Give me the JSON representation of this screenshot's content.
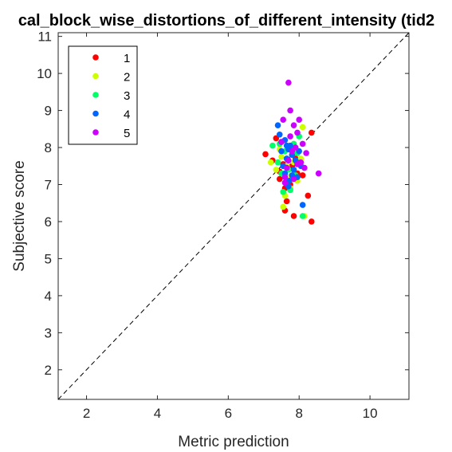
{
  "chart_data": {
    "type": "scatter",
    "title": "cal_block_wise_distortions_of_different_intensity (tid2",
    "xlabel": "Metric prediction",
    "ylabel": "Subjective score",
    "xlim": [
      1.2,
      11.1
    ],
    "ylim": [
      1.2,
      11.1
    ],
    "xticks": [
      2,
      4,
      6,
      8,
      10
    ],
    "yticks": [
      2,
      3,
      4,
      5,
      6,
      7,
      8,
      9,
      10,
      11
    ],
    "grid": false,
    "diagonal": true,
    "legend_position": "top-left",
    "series": [
      {
        "name": "1",
        "color": "#ff0000",
        "points": [
          [
            7.05,
            7.82
          ],
          [
            7.25,
            7.65
          ],
          [
            7.35,
            8.25
          ],
          [
            7.45,
            7.35
          ],
          [
            7.55,
            7.55
          ],
          [
            7.6,
            6.3
          ],
          [
            7.65,
            6.55
          ],
          [
            7.75,
            7.0
          ],
          [
            7.85,
            6.15
          ],
          [
            7.95,
            7.3
          ],
          [
            8.1,
            7.25
          ],
          [
            8.25,
            6.7
          ],
          [
            8.35,
            6.0
          ],
          [
            8.35,
            8.4
          ],
          [
            7.7,
            7.95
          ],
          [
            7.9,
            7.7
          ],
          [
            7.45,
            7.15
          ],
          [
            7.6,
            6.9
          ],
          [
            7.8,
            7.5
          ]
        ]
      },
      {
        "name": "2",
        "color": "#ccff00",
        "points": [
          [
            7.2,
            7.6
          ],
          [
            7.35,
            7.4
          ],
          [
            7.45,
            7.95
          ],
          [
            7.55,
            6.4
          ],
          [
            7.6,
            6.7
          ],
          [
            7.7,
            7.2
          ],
          [
            7.75,
            6.9
          ],
          [
            7.85,
            7.6
          ],
          [
            7.95,
            7.1
          ],
          [
            8.05,
            7.7
          ],
          [
            8.1,
            8.55
          ],
          [
            8.15,
            6.15
          ],
          [
            7.65,
            7.5
          ],
          [
            7.5,
            7.75
          ]
        ]
      },
      {
        "name": "3",
        "color": "#00ff66",
        "points": [
          [
            7.25,
            8.05
          ],
          [
            7.4,
            7.6
          ],
          [
            7.5,
            7.3
          ],
          [
            7.55,
            6.8
          ],
          [
            7.6,
            7.9
          ],
          [
            7.7,
            7.4
          ],
          [
            7.75,
            6.85
          ],
          [
            7.8,
            7.95
          ],
          [
            7.85,
            8.1
          ],
          [
            7.9,
            7.25
          ],
          [
            7.95,
            7.85
          ],
          [
            8.0,
            8.3
          ],
          [
            8.1,
            6.15
          ],
          [
            7.65,
            7.05
          ],
          [
            7.45,
            8.1
          ]
        ]
      },
      {
        "name": "4",
        "color": "#0066ff",
        "points": [
          [
            7.4,
            8.6
          ],
          [
            7.45,
            8.35
          ],
          [
            7.5,
            7.9
          ],
          [
            7.55,
            7.5
          ],
          [
            7.6,
            8.2
          ],
          [
            7.65,
            7.7
          ],
          [
            7.7,
            7.95
          ],
          [
            7.72,
            7.1
          ],
          [
            7.75,
            8.05
          ],
          [
            7.8,
            7.8
          ],
          [
            7.85,
            7.4
          ],
          [
            7.9,
            7.65
          ],
          [
            7.95,
            7.2
          ],
          [
            8.0,
            7.9
          ],
          [
            8.05,
            7.5
          ],
          [
            8.1,
            6.45
          ],
          [
            7.6,
            7.3
          ],
          [
            7.7,
            6.95
          ],
          [
            7.5,
            8.15
          ],
          [
            7.8,
            7.25
          ],
          [
            7.65,
            8.05
          ]
        ]
      },
      {
        "name": "5",
        "color": "#cc00ff",
        "points": [
          [
            7.5,
            8.15
          ],
          [
            7.55,
            8.75
          ],
          [
            7.6,
            7.2
          ],
          [
            7.65,
            7.45
          ],
          [
            7.7,
            9.75
          ],
          [
            7.75,
            9.0
          ],
          [
            7.75,
            8.3
          ],
          [
            7.8,
            7.9
          ],
          [
            7.85,
            8.6
          ],
          [
            7.9,
            8.0
          ],
          [
            7.95,
            8.4
          ],
          [
            8.0,
            8.75
          ],
          [
            8.05,
            7.6
          ],
          [
            8.1,
            8.1
          ],
          [
            8.15,
            7.45
          ],
          [
            8.2,
            7.85
          ],
          [
            8.55,
            7.3
          ],
          [
            7.6,
            7.05
          ],
          [
            7.7,
            7.65
          ],
          [
            7.85,
            7.15
          ],
          [
            7.95,
            7.55
          ]
        ]
      }
    ]
  }
}
